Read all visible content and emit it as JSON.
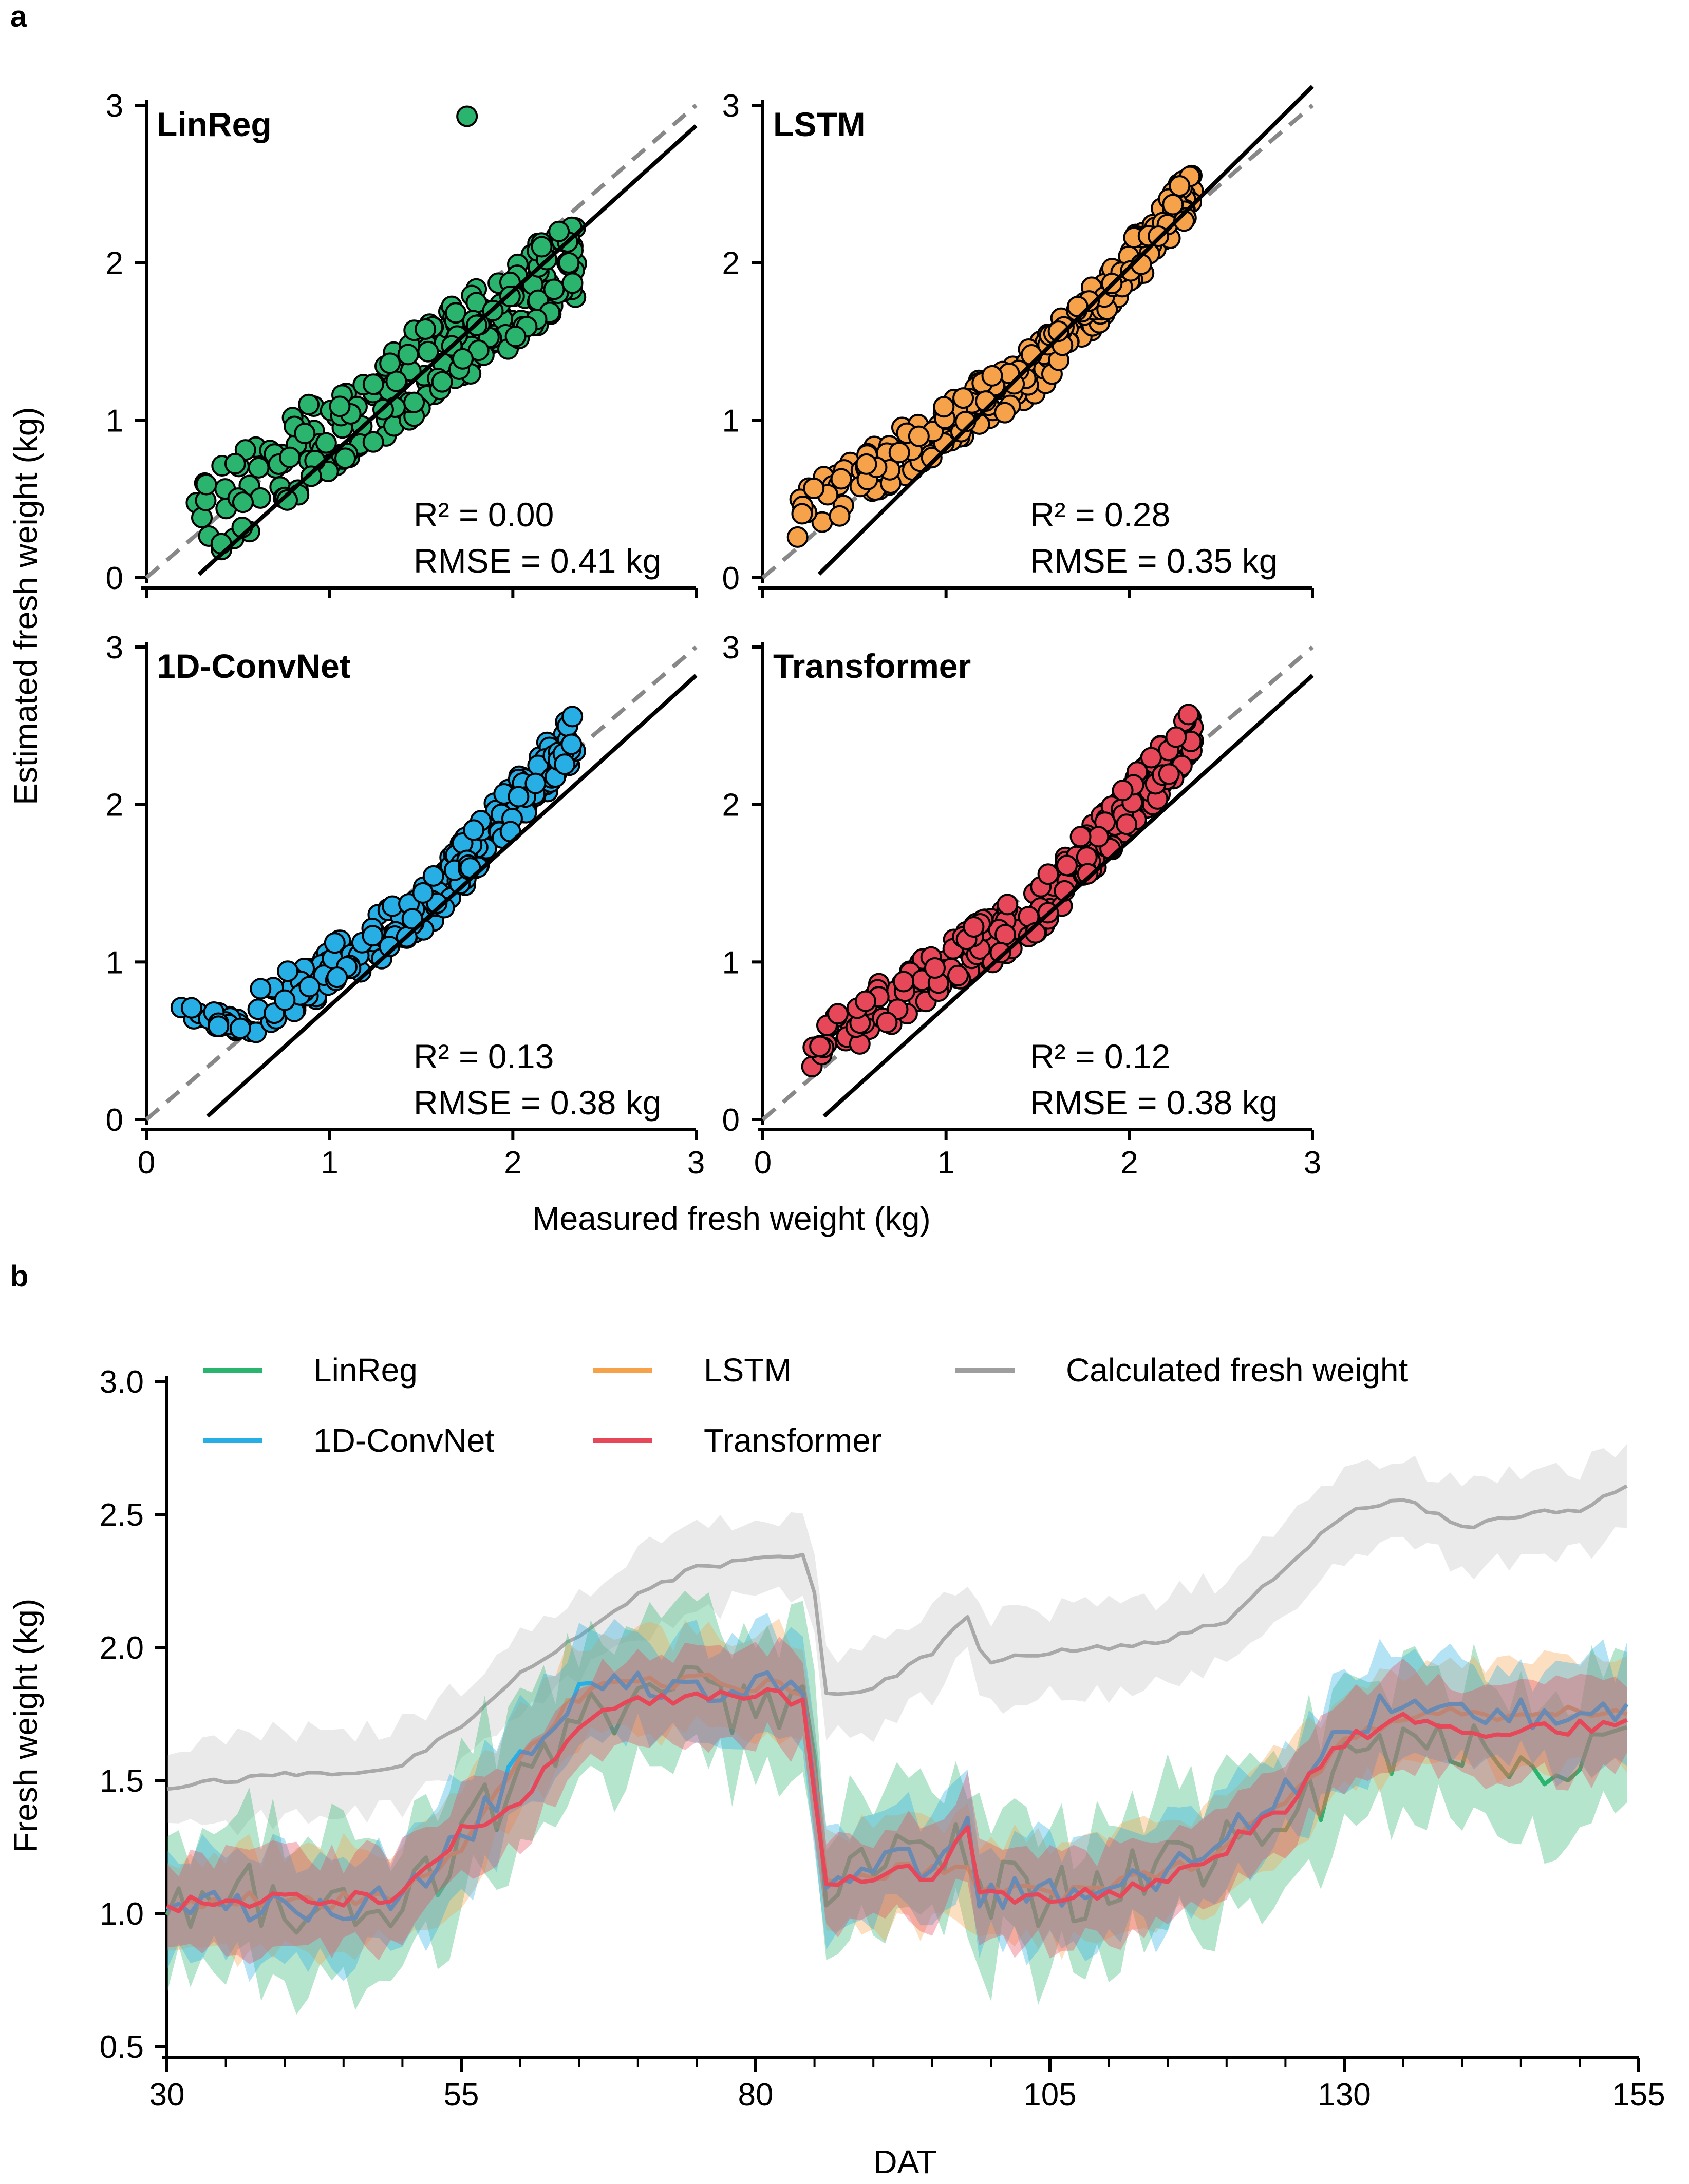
{
  "panel_a_label": "a",
  "panel_b_label": "b",
  "colors": {
    "linreg": "#2bb46e",
    "lstm": "#f5a24a",
    "convnet": "#27aee4",
    "transformer": "#e6485a",
    "calc": "#9e9e9e",
    "identity": "#888888",
    "fit": "#000000"
  },
  "chart_data": [
    {
      "type": "scatter",
      "panel": "a",
      "xlabel": "Measured fresh weight (kg)",
      "ylabel": "Estimated fresh weight (kg)",
      "xlim": [
        0,
        3
      ],
      "ylim": [
        0,
        3
      ],
      "xticks": [
        "0",
        "1",
        "2",
        "3"
      ],
      "yticks": [
        "0",
        "1",
        "2",
        "3"
      ],
      "reference_line": "y = x (dashed)",
      "subplots": [
        {
          "name": "LinReg",
          "r2": "R² = 0.00",
          "rmse": "RMSE = 0.41 kg",
          "fit": {
            "slope": 1.05,
            "intercept": -0.28
          },
          "color_key": "linreg"
        },
        {
          "name": "LSTM",
          "r2": "R² = 0.28",
          "rmse": "RMSE = 0.35 kg",
          "fit": {
            "slope": 1.15,
            "intercept": -0.33
          },
          "color_key": "lstm"
        },
        {
          "name": "1D-ConvNet",
          "r2": "R² = 0.13",
          "rmse": "RMSE = 0.38 kg",
          "fit": {
            "slope": 1.05,
            "intercept": -0.33
          },
          "color_key": "convnet"
        },
        {
          "name": "Transformer",
          "r2": "R² = 0.12",
          "rmse": "RMSE = 0.38 kg",
          "fit": {
            "slope": 1.05,
            "intercept": -0.33
          },
          "color_key": "transformer"
        }
      ]
    },
    {
      "type": "line",
      "panel": "b",
      "xlabel": "DAT",
      "ylabel": "Fresh weight (kg)",
      "xlim": [
        30,
        155
      ],
      "ylim": [
        0.5,
        3.0
      ],
      "xticks": [
        "30",
        "55",
        "80",
        "105",
        "130",
        "155"
      ],
      "yticks": [
        "0.5",
        "1.0",
        "1.5",
        "2.0",
        "2.5",
        "3.0"
      ],
      "legend": [
        "LinReg",
        "LSTM",
        "Calculated fresh weight",
        "1D-ConvNet",
        "Transformer"
      ],
      "x_anchors": [
        30,
        35,
        40,
        45,
        50,
        55,
        60,
        65,
        70,
        75,
        80,
        84,
        85,
        86,
        90,
        95,
        98,
        99,
        100,
        105,
        110,
        115,
        120,
        125,
        130,
        135,
        140,
        145,
        150,
        154
      ],
      "series": [
        {
          "name": "Calculated fresh weight",
          "color_key": "calc",
          "values": [
            1.47,
            1.5,
            1.52,
            1.52,
            1.56,
            1.7,
            1.9,
            2.05,
            2.2,
            2.3,
            2.33,
            2.35,
            2.2,
            1.82,
            1.85,
            1.98,
            2.12,
            2.0,
            1.95,
            1.98,
            2.0,
            2.03,
            2.1,
            2.3,
            2.5,
            2.56,
            2.45,
            2.5,
            2.52,
            2.6
          ],
          "band": 0.15
        },
        {
          "name": "LinReg",
          "color_key": "linreg",
          "values": [
            1.02,
            1.1,
            1.05,
            1.0,
            1.05,
            1.25,
            1.55,
            1.7,
            1.8,
            1.85,
            1.75,
            1.8,
            1.5,
            1.05,
            1.2,
            1.15,
            1.25,
            1.05,
            1.1,
            1.05,
            1.1,
            1.15,
            1.25,
            1.3,
            1.55,
            1.6,
            1.65,
            1.55,
            1.6,
            1.7
          ],
          "band": 0.25
        },
        {
          "name": "LSTM",
          "color_key": "lstm",
          "values": [
            1.03,
            1.05,
            1.05,
            1.05,
            1.08,
            1.25,
            1.6,
            1.82,
            1.86,
            1.88,
            1.86,
            1.85,
            1.55,
            1.1,
            1.15,
            1.17,
            1.2,
            1.08,
            1.08,
            1.07,
            1.1,
            1.15,
            1.25,
            1.4,
            1.65,
            1.72,
            1.75,
            1.76,
            1.76,
            1.77
          ],
          "band": 0.18
        },
        {
          "name": "1D-ConvNet",
          "color_key": "convnet",
          "values": [
            1.02,
            1.03,
            1.03,
            1.03,
            1.08,
            1.28,
            1.55,
            1.85,
            1.88,
            1.85,
            1.86,
            1.85,
            1.5,
            1.1,
            1.2,
            1.18,
            1.3,
            1.08,
            1.07,
            1.08,
            1.1,
            1.15,
            1.3,
            1.45,
            1.7,
            1.8,
            1.75,
            1.75,
            1.73,
            1.75
          ],
          "band": 0.18
        },
        {
          "name": "Transformer",
          "color_key": "transformer",
          "values": [
            1.03,
            1.05,
            1.05,
            1.05,
            1.08,
            1.3,
            1.4,
            1.72,
            1.8,
            1.82,
            1.82,
            1.8,
            1.45,
            1.08,
            1.15,
            1.15,
            1.3,
            1.07,
            1.07,
            1.07,
            1.08,
            1.12,
            1.25,
            1.4,
            1.65,
            1.72,
            1.7,
            1.68,
            1.7,
            1.73
          ],
          "band": 0.16
        }
      ]
    }
  ]
}
